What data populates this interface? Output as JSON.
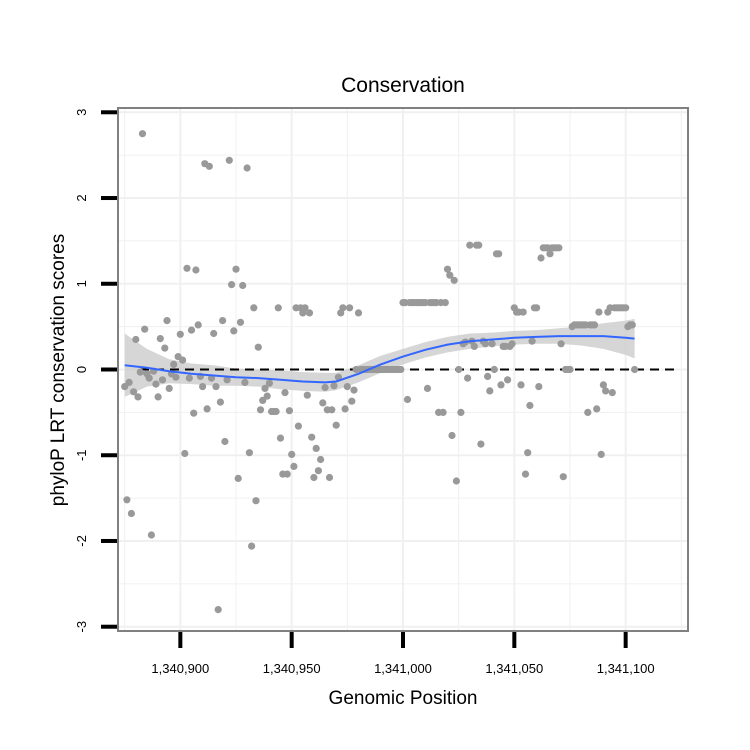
{
  "chart_data": {
    "type": "scatter",
    "title": "Conservation",
    "xlabel": "Genomic Position",
    "ylabel": "phyloP LRT conservation scores",
    "xlim": [
      1340872,
      1341128
    ],
    "ylim": [
      -3.05,
      3.05
    ],
    "x_ticks": [
      1340900,
      1340950,
      1341000,
      1341050,
      1341100
    ],
    "x_tick_labels": [
      "1,340,900",
      "1,340,950",
      "1,341,000",
      "1,341,050",
      "1,341,100"
    ],
    "y_ticks": [
      -3,
      -2,
      -1,
      0,
      1,
      2,
      3
    ],
    "y_tick_labels": [
      "-3",
      "-2",
      "-1",
      "0",
      "1",
      "2",
      "3"
    ],
    "grid": true,
    "reference_line": {
      "y": 0,
      "style": "dashed"
    },
    "colors": {
      "points": "#999999",
      "smooth": "#3366ff",
      "band": "#cccccc",
      "grid": "#f0f0f0",
      "frame": "#808080",
      "ref": "#000000"
    },
    "series": [
      {
        "name": "scores",
        "kind": "points",
        "points": [
          [
            1340875,
            -0.2
          ],
          [
            1340876,
            -1.52
          ],
          [
            1340877,
            -0.15
          ],
          [
            1340878,
            -1.68
          ],
          [
            1340879,
            -0.26
          ],
          [
            1340880,
            0.35
          ],
          [
            1340881,
            -0.32
          ],
          [
            1340882,
            -0.03
          ],
          [
            1340883,
            2.75
          ],
          [
            1340884,
            0.47
          ],
          [
            1340885,
            -0.05
          ],
          [
            1340886,
            -0.1
          ],
          [
            1340887,
            -1.93
          ],
          [
            1340888,
            -0.02
          ],
          [
            1340889,
            -0.17
          ],
          [
            1340890,
            -0.32
          ],
          [
            1340891,
            0.36
          ],
          [
            1340892,
            -0.12
          ],
          [
            1340893,
            0.25
          ],
          [
            1340894,
            0.57
          ],
          [
            1340895,
            -0.22
          ],
          [
            1340896,
            -0.05
          ],
          [
            1340897,
            0.06
          ],
          [
            1340898,
            -0.09
          ],
          [
            1340899,
            0.15
          ],
          [
            1340900,
            0.41
          ],
          [
            1340901,
            0.11
          ],
          [
            1340902,
            -0.98
          ],
          [
            1340903,
            1.18
          ],
          [
            1340904,
            -0.1
          ],
          [
            1340905,
            0.46
          ],
          [
            1340906,
            -0.51
          ],
          [
            1340907,
            1.16
          ],
          [
            1340908,
            0.52
          ],
          [
            1340909,
            -0.08
          ],
          [
            1340910,
            -0.2
          ],
          [
            1340911,
            2.4
          ],
          [
            1340912,
            -0.46
          ],
          [
            1340913,
            2.37
          ],
          [
            1340914,
            -0.1
          ],
          [
            1340915,
            0.42
          ],
          [
            1340916,
            -0.2
          ],
          [
            1340917,
            -2.8
          ],
          [
            1340918,
            -0.38
          ],
          [
            1340919,
            0.57
          ],
          [
            1340920,
            -0.84
          ],
          [
            1340921,
            -0.12
          ],
          [
            1340922,
            2.44
          ],
          [
            1340923,
            0.99
          ],
          [
            1340924,
            0.45
          ],
          [
            1340925,
            1.17
          ],
          [
            1340926,
            -1.27
          ],
          [
            1340927,
            0.55
          ],
          [
            1340928,
            0.98
          ],
          [
            1340929,
            -0.15
          ],
          [
            1340930,
            2.35
          ],
          [
            1340931,
            -0.97
          ],
          [
            1340932,
            -2.06
          ],
          [
            1340933,
            0.72
          ],
          [
            1340934,
            -1.53
          ],
          [
            1340935,
            0.26
          ],
          [
            1340936,
            -0.47
          ],
          [
            1340937,
            -0.36
          ],
          [
            1340938,
            -0.22
          ],
          [
            1340939,
            -0.31
          ],
          [
            1340940,
            -0.16
          ],
          [
            1340941,
            -0.49
          ],
          [
            1340942,
            -0.49
          ],
          [
            1340943,
            -0.49
          ],
          [
            1340944,
            0.72
          ],
          [
            1340945,
            -0.8
          ],
          [
            1340946,
            -1.22
          ],
          [
            1340947,
            -0.27
          ],
          [
            1340948,
            -1.22
          ],
          [
            1340949,
            -0.48
          ],
          [
            1340950,
            -0.99
          ],
          [
            1340951,
            -1.13
          ],
          [
            1340952,
            0.72
          ],
          [
            1340953,
            -0.66
          ],
          [
            1340954,
            0.72
          ],
          [
            1340955,
            0.66
          ],
          [
            1340956,
            0.72
          ],
          [
            1340957,
            -0.3
          ],
          [
            1340958,
            0.66
          ],
          [
            1340959,
            -0.79
          ],
          [
            1340960,
            -1.26
          ],
          [
            1340961,
            -0.92
          ],
          [
            1340962,
            -1.18
          ],
          [
            1340963,
            -1.05
          ],
          [
            1340964,
            -0.39
          ],
          [
            1340965,
            -0.21
          ],
          [
            1340966,
            -0.47
          ],
          [
            1340967,
            -1.26
          ],
          [
            1340968,
            -0.47
          ],
          [
            1340969,
            -0.19
          ],
          [
            1340970,
            -0.65
          ],
          [
            1340971,
            -0.09
          ],
          [
            1340972,
            0.66
          ],
          [
            1340973,
            0.72
          ],
          [
            1340974,
            -0.46
          ],
          [
            1340975,
            -0.2
          ],
          [
            1340976,
            0.72
          ],
          [
            1340977,
            -0.37
          ],
          [
            1340978,
            -0.24
          ],
          [
            1340979,
            0.0
          ],
          [
            1340980,
            0.66
          ],
          [
            1340981,
            0.0
          ],
          [
            1340982,
            0.0
          ],
          [
            1340983,
            0.0
          ],
          [
            1340984,
            0.0
          ],
          [
            1340985,
            0.0
          ],
          [
            1340986,
            0.0
          ],
          [
            1340987,
            0.0
          ],
          [
            1340988,
            0.0
          ],
          [
            1340989,
            0.0
          ],
          [
            1340990,
            0.0
          ],
          [
            1340991,
            0.0
          ],
          [
            1340992,
            0.0
          ],
          [
            1340993,
            0.0
          ],
          [
            1340994,
            0.0
          ],
          [
            1340995,
            0.0
          ],
          [
            1340996,
            0.0
          ],
          [
            1340997,
            0.0
          ],
          [
            1340998,
            0.0
          ],
          [
            1340999,
            0.0
          ],
          [
            1341000,
            0.78
          ],
          [
            1341001,
            0.78
          ],
          [
            1341002,
            -0.35
          ],
          [
            1341003,
            0.78
          ],
          [
            1341004,
            0.78
          ],
          [
            1341005,
            0.78
          ],
          [
            1341006,
            0.78
          ],
          [
            1341007,
            0.78
          ],
          [
            1341008,
            0.78
          ],
          [
            1341009,
            0.78
          ],
          [
            1341010,
            0.78
          ],
          [
            1341011,
            -0.22
          ],
          [
            1341012,
            0.78
          ],
          [
            1341013,
            0.78
          ],
          [
            1341014,
            0.78
          ],
          [
            1341015,
            0.78
          ],
          [
            1341016,
            -0.5
          ],
          [
            1341017,
            0.78
          ],
          [
            1341018,
            -0.5
          ],
          [
            1341019,
            0.78
          ],
          [
            1341020,
            1.17
          ],
          [
            1341021,
            1.1
          ],
          [
            1341022,
            -0.77
          ],
          [
            1341023,
            1.04
          ],
          [
            1341024,
            -1.3
          ],
          [
            1341025,
            0.0
          ],
          [
            1341026,
            -0.5
          ],
          [
            1341027,
            0.3
          ],
          [
            1341028,
            0.32
          ],
          [
            1341029,
            -0.1
          ],
          [
            1341030,
            1.45
          ],
          [
            1341031,
            0.33
          ],
          [
            1341032,
            0.27
          ],
          [
            1341033,
            1.45
          ],
          [
            1341034,
            1.45
          ],
          [
            1341035,
            -0.87
          ],
          [
            1341036,
            0.33
          ],
          [
            1341037,
            0.3
          ],
          [
            1341038,
            -0.08
          ],
          [
            1341039,
            -0.25
          ],
          [
            1341040,
            0.3
          ],
          [
            1341041,
            0.0
          ],
          [
            1341042,
            1.35
          ],
          [
            1341043,
            1.35
          ],
          [
            1341044,
            -0.18
          ],
          [
            1341045,
            0.27
          ],
          [
            1341046,
            0.27
          ],
          [
            1341047,
            -0.12
          ],
          [
            1341048,
            0.27
          ],
          [
            1341049,
            0.3
          ],
          [
            1341050,
            0.72
          ],
          [
            1341051,
            0.67
          ],
          [
            1341052,
            0.67
          ],
          [
            1341053,
            -0.18
          ],
          [
            1341054,
            0.67
          ],
          [
            1341055,
            -1.22
          ],
          [
            1341056,
            -0.97
          ],
          [
            1341057,
            -0.42
          ],
          [
            1341058,
            0.33
          ],
          [
            1341059,
            0.72
          ],
          [
            1341060,
            0.72
          ],
          [
            1341061,
            -0.2
          ],
          [
            1341062,
            1.3
          ],
          [
            1341063,
            1.42
          ],
          [
            1341064,
            1.42
          ],
          [
            1341065,
            1.42
          ],
          [
            1341066,
            1.35
          ],
          [
            1341067,
            1.42
          ],
          [
            1341068,
            1.42
          ],
          [
            1341069,
            1.42
          ],
          [
            1341070,
            1.42
          ],
          [
            1341071,
            0.3
          ],
          [
            1341072,
            -1.25
          ],
          [
            1341073,
            0.0
          ],
          [
            1341074,
            0.0
          ],
          [
            1341075,
            0.0
          ],
          [
            1341076,
            0.5
          ],
          [
            1341077,
            0.52
          ],
          [
            1341078,
            0.52
          ],
          [
            1341079,
            0.52
          ],
          [
            1341080,
            0.52
          ],
          [
            1341081,
            0.52
          ],
          [
            1341082,
            0.52
          ],
          [
            1341083,
            -0.5
          ],
          [
            1341084,
            0.52
          ],
          [
            1341085,
            0.52
          ],
          [
            1341086,
            0.52
          ],
          [
            1341087,
            -0.46
          ],
          [
            1341088,
            0.67
          ],
          [
            1341089,
            -0.99
          ],
          [
            1341090,
            -0.18
          ],
          [
            1341091,
            -0.25
          ],
          [
            1341092,
            0.67
          ],
          [
            1341093,
            0.72
          ],
          [
            1341094,
            -0.27
          ],
          [
            1341095,
            0.72
          ],
          [
            1341096,
            0.72
          ],
          [
            1341097,
            0.72
          ],
          [
            1341098,
            0.72
          ],
          [
            1341099,
            0.72
          ],
          [
            1341100,
            0.72
          ],
          [
            1341101,
            0.5
          ],
          [
            1341102,
            0.52
          ],
          [
            1341103,
            0.52
          ],
          [
            1341104,
            0.0
          ]
        ]
      },
      {
        "name": "smooth",
        "kind": "line",
        "x": [
          1340875,
          1340885,
          1340895,
          1340905,
          1340915,
          1340925,
          1340935,
          1340945,
          1340955,
          1340965,
          1340970,
          1340980,
          1340990,
          1341000,
          1341010,
          1341020,
          1341030,
          1341040,
          1341050,
          1341060,
          1341070,
          1341080,
          1341090,
          1341100,
          1341104
        ],
        "y": [
          0.05,
          0.02,
          -0.02,
          -0.05,
          -0.07,
          -0.09,
          -0.1,
          -0.12,
          -0.14,
          -0.15,
          -0.14,
          -0.05,
          0.06,
          0.15,
          0.23,
          0.29,
          0.33,
          0.35,
          0.37,
          0.38,
          0.39,
          0.39,
          0.39,
          0.37,
          0.36
        ],
        "lower": [
          -0.32,
          -0.2,
          -0.16,
          -0.17,
          -0.19,
          -0.19,
          -0.2,
          -0.23,
          -0.25,
          -0.26,
          -0.24,
          -0.15,
          -0.04,
          0.06,
          0.14,
          0.2,
          0.24,
          0.27,
          0.29,
          0.3,
          0.3,
          0.28,
          0.24,
          0.17,
          0.13
        ],
        "upper": [
          0.42,
          0.24,
          0.12,
          0.07,
          0.05,
          0.01,
          0.0,
          -0.01,
          -0.03,
          -0.04,
          -0.04,
          0.05,
          0.16,
          0.24,
          0.32,
          0.38,
          0.42,
          0.43,
          0.45,
          0.46,
          0.48,
          0.5,
          0.54,
          0.57,
          0.59
        ]
      }
    ]
  }
}
